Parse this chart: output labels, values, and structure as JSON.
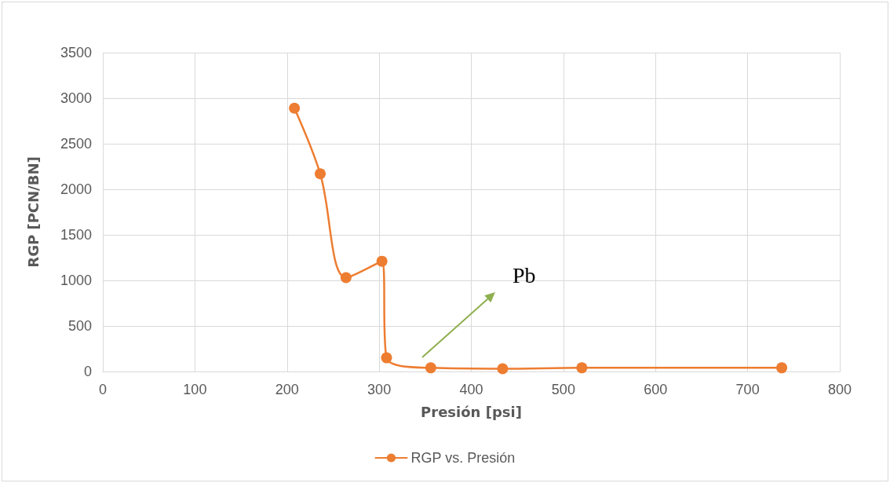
{
  "chart_data": {
    "type": "line",
    "xlabel": "Presión [psi]",
    "ylabel": "RGP [PCN/BN]",
    "x": [
      208,
      236,
      264,
      303,
      308,
      356,
      434,
      520,
      737
    ],
    "series": [
      {
        "name": "RGP vs. Presión",
        "color": "#ed7d31",
        "values": [
          2890,
          2170,
          1030,
          1210,
          150,
          40,
          30,
          40,
          40
        ]
      }
    ],
    "xlim": [
      0,
      800
    ],
    "xticks": [
      0,
      100,
      200,
      300,
      400,
      500,
      600,
      700,
      800
    ],
    "ylim": [
      0,
      3500
    ],
    "yticks": [
      0,
      500,
      1000,
      1500,
      2000,
      2500,
      3000,
      3500
    ],
    "annotations": [
      "Pb"
    ],
    "grid": true,
    "legend": "bottom",
    "marker": "circle",
    "line_style": "solid"
  }
}
